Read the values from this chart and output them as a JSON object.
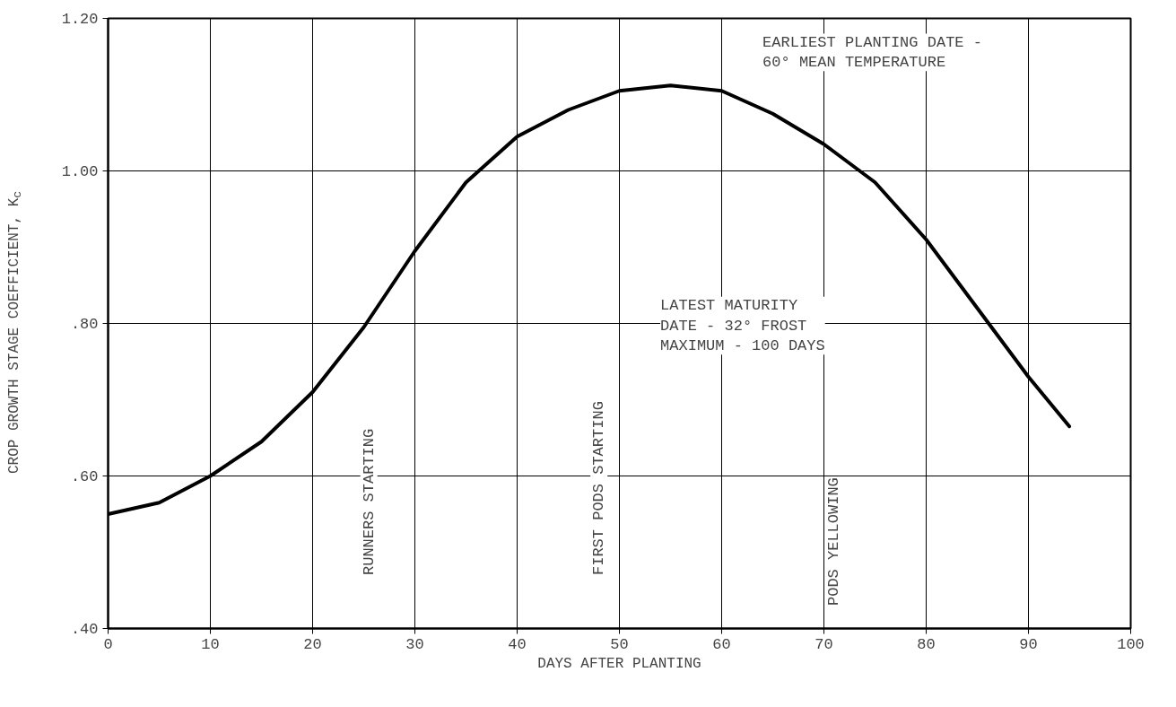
{
  "chart_data": {
    "type": "line",
    "xlabel": "DAYS AFTER PLANTING",
    "ylabel": "CROP GROWTH STAGE COEFFICIENT, K$_{c}$",
    "x": [
      0,
      5,
      10,
      15,
      20,
      25,
      30,
      35,
      40,
      45,
      50,
      55,
      60,
      65,
      70,
      75,
      80,
      85,
      90,
      94
    ],
    "series": [
      {
        "color": "#000000",
        "values": [
          0.55,
          0.565,
          0.6,
          0.645,
          0.71,
          0.795,
          0.895,
          0.985,
          1.045,
          1.08,
          1.105,
          1.112,
          1.105,
          1.075,
          1.035,
          0.985,
          0.91,
          0.82,
          0.73,
          0.665
        ]
      }
    ],
    "xlim": [
      0,
      100
    ],
    "ylim": [
      0.4,
      1.2
    ],
    "xticks": [
      0,
      10,
      20,
      30,
      40,
      50,
      60,
      70,
      80,
      90,
      100
    ],
    "yticks": [
      {
        "value": 0.4,
        "label": ".40"
      },
      {
        "value": 0.6,
        "label": ".60"
      },
      {
        "value": 0.8,
        "label": ".80"
      },
      {
        "value": 1.0,
        "label": "1.00"
      },
      {
        "value": 1.2,
        "label": "1.20"
      }
    ],
    "grid": true,
    "marker": "none",
    "line_style": "solid",
    "annotations": [
      "RUNNERS STARTING",
      "FIRST PODS STARTING",
      "PODS YELLOWING",
      "EARLIEST PLANTING DATE -\n  60° MEAN TEMPERATURE",
      "LATEST MATURITY\n  DATE - 32° FROST\nMAXIMUM - 100 DAYS"
    ]
  }
}
